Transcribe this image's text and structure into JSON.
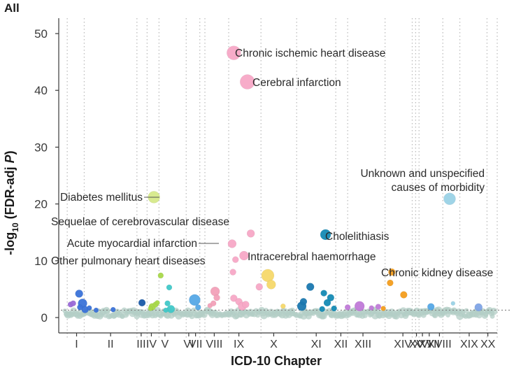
{
  "chart_data": {
    "type": "scatter",
    "subtype": "manhattan",
    "panel_title": "All",
    "xlabel": "ICD-10 Chapter",
    "ylabel_parts": [
      "-log",
      "10",
      " (FDR-adj ",
      "P",
      ")"
    ],
    "ylim": [
      0,
      53
    ],
    "yticks": [
      0,
      10,
      20,
      30,
      40,
      50
    ],
    "significance_threshold": 1.3,
    "chapters": [
      "I",
      "II",
      "III",
      "IV",
      "V",
      "VI",
      "VII",
      "VIII",
      "IX",
      "X",
      "XI",
      "XII",
      "XIII",
      "XIV",
      "XV",
      "XVI",
      "XVII",
      "XVIII",
      "XIX",
      "XX"
    ],
    "chapter_ranges": [
      [
        5,
        15
      ],
      [
        15,
        46
      ],
      [
        46,
        52
      ],
      [
        52,
        59
      ],
      [
        59,
        75
      ],
      [
        75,
        83
      ],
      [
        83,
        86
      ],
      [
        86,
        100
      ],
      [
        100,
        119
      ],
      [
        119,
        140
      ],
      [
        140,
        163
      ],
      [
        163,
        170
      ],
      [
        170,
        192
      ],
      [
        192,
        208
      ],
      [
        208,
        210
      ],
      [
        210,
        212
      ],
      [
        212,
        226
      ],
      [
        226,
        236
      ],
      [
        236,
        252
      ],
      [
        252,
        258
      ]
    ],
    "chapter_label_positions": [
      10.5,
      30.5,
      48.5,
      54.5,
      62.5,
      76.5,
      80.5,
      91.5,
      106,
      126.5,
      151.5,
      166,
      179,
      202.5,
      210.5,
      214,
      218,
      224,
      241.5,
      252.5
    ],
    "chapter_tick_labels": [
      {
        "label": "I",
        "x": 10.5
      },
      {
        "label": "II",
        "x": 30.5
      },
      {
        "label": "III",
        "x": 48.5
      },
      {
        "label": "IV",
        "x": 54.5
      },
      {
        "label": "V",
        "x": 62.5
      },
      {
        "label": "VI",
        "x": 76.5
      },
      {
        "label": "VII",
        "x": 80.5
      },
      {
        "label": "VIII",
        "x": 91.5
      },
      {
        "label": "IX",
        "x": 106
      },
      {
        "label": "X",
        "x": 126.5
      },
      {
        "label": "XI",
        "x": 151.5
      },
      {
        "label": "XII",
        "x": 166
      },
      {
        "label": "XIII",
        "x": 179
      },
      {
        "label": "XIV",
        "x": 202.5
      },
      {
        "label": "XV",
        "x": 210.5
      },
      {
        "label": "XVI",
        "x": 214
      },
      {
        "label": "XVII",
        "x": 218
      },
      {
        "label": "XVIII",
        "x": 224
      },
      {
        "label": "XIX",
        "x": 241.5
      },
      {
        "label": "XX",
        "x": 252.5
      }
    ],
    "chapter_boundaries": [
      5,
      15,
      46,
      52,
      59,
      75,
      83,
      86,
      100,
      119,
      140,
      163,
      170,
      192,
      208,
      210,
      212,
      226,
      236,
      252,
      258
    ],
    "chapter_colors": {
      "I": "#3a72d8",
      "II": "#3a72d8",
      "III": "#1a5aa8",
      "IV": "#a8d84a",
      "V": "#40c8c8",
      "VI": "#40c8c8",
      "VII": "#55a8e6",
      "VIII": "#f2a0b8",
      "IX": "#f7a8c6",
      "X": "#f5d86a",
      "XI": "#1a78b0",
      "XII": "#148ab4",
      "XIII": "#c07ad8",
      "XIV": "#f39d1c",
      "XV": "#55a8e6",
      "XVI": "#55a8e6",
      "XVII": "#55a8e6",
      "XVIII": "#9ad2e6",
      "XIX": "#7fa4e6",
      "XX": "#7fa4e6"
    },
    "nonsignificant_color": "#b3cdc6",
    "series": [
      {
        "name": "Chronic ischemic heart disease",
        "chapter": "IX",
        "x": 103,
        "y": 46.6,
        "size": 10,
        "color": "#f7a8c6",
        "label": "Chronic ischemic heart disease"
      },
      {
        "name": "Cerebral infarction",
        "chapter": "IX",
        "x": 111,
        "y": 41.5,
        "size": 10.5,
        "color": "#f7a8c6",
        "label": "Cerebral infarction"
      },
      {
        "name": "Unknown and unspecified causes of morbidity",
        "chapter": "XVIII",
        "x": 230,
        "y": 20.9,
        "size": 8.5,
        "color": "#9ad2e6",
        "label_lines": [
          "Unknown and unspecified",
          "causes of morbidity"
        ]
      },
      {
        "name": "Diabetes mellitus",
        "chapter": "IV",
        "x": 56,
        "y": 21.2,
        "size": 8.5,
        "color": "#d6e98a",
        "label": "Diabetes mellitus"
      },
      {
        "name": "Sequelae of cerebrovascular disease",
        "chapter": "IX",
        "x": 113,
        "y": 14.8,
        "size": 5.5,
        "color": "#f7a8c6",
        "label": "Sequelae of cerebrovascular disease"
      },
      {
        "name": "Cholelithiasis",
        "chapter": "XI",
        "x": 157,
        "y": 14.6,
        "size": 7.5,
        "color": "#148ab4",
        "label": "Cholelithiasis"
      },
      {
        "name": "Acute myocardial infarction",
        "chapter": "IX",
        "x": 102,
        "y": 13.0,
        "size": 6,
        "color": "#f7a8c6",
        "label": "Acute myocardial infarction"
      },
      {
        "name": "Intracerebral haemorrhage",
        "chapter": "IX",
        "x": 109,
        "y": 10.9,
        "size": 6.5,
        "color": "#f7a8c6",
        "label": "Intracerebral haemorrhage"
      },
      {
        "name": "Other pulmonary heart diseases",
        "chapter": "IX",
        "x": 104,
        "y": 10.2,
        "size": 4.5,
        "color": "#f7a8c6",
        "label": "Other pulmonary heart diseases"
      },
      {
        "name": "Chronic kidney disease",
        "chapter": "XIV",
        "x": 196,
        "y": 8.0,
        "size": 5,
        "color": "#f39d1c",
        "label": "Chronic kidney disease"
      }
    ],
    "points": [
      {
        "x": 7,
        "y": 2.3,
        "size": 4,
        "color": "#9a6ad8"
      },
      {
        "x": 8.5,
        "y": 2.5,
        "size": 4,
        "color": "#9a6ad8"
      },
      {
        "x": 12,
        "y": 4.2,
        "size": 5.5,
        "color": "#3a72d8"
      },
      {
        "x": 14,
        "y": 2.5,
        "size": 6.5,
        "color": "#3a72d8"
      },
      {
        "x": 15.5,
        "y": 1.4,
        "size": 5,
        "color": "#3a72d8"
      },
      {
        "x": 12.5,
        "y": 1.8,
        "size": 4,
        "color": "#3a72d8"
      },
      {
        "x": 18,
        "y": 1.7,
        "size": 3.5,
        "color": "#3a72d8"
      },
      {
        "x": 22,
        "y": 1.3,
        "size": 3.5,
        "color": "#3a72d8"
      },
      {
        "x": 32,
        "y": 1.4,
        "size": 3.5,
        "color": "#3a72d8"
      },
      {
        "x": 49,
        "y": 2.6,
        "size": 5,
        "color": "#1a5aa8"
      },
      {
        "x": 55,
        "y": 1.9,
        "size": 5,
        "color": "#a8d84a"
      },
      {
        "x": 57,
        "y": 2.3,
        "size": 4,
        "color": "#a8d84a"
      },
      {
        "x": 58,
        "y": 2.6,
        "size": 3.5,
        "color": "#a8d84a"
      },
      {
        "x": 54,
        "y": 1.6,
        "size": 3.5,
        "color": "#a8d84a"
      },
      {
        "x": 60,
        "y": 7.4,
        "size": 4,
        "color": "#a8d84a"
      },
      {
        "x": 65,
        "y": 5.3,
        "size": 4,
        "color": "#40c8c8"
      },
      {
        "x": 64,
        "y": 2.5,
        "size": 4,
        "color": "#40c8c8"
      },
      {
        "x": 66,
        "y": 1.5,
        "size": 5.5,
        "color": "#40c8c8"
      },
      {
        "x": 63,
        "y": 1.3,
        "size": 3.5,
        "color": "#40c8c8"
      },
      {
        "x": 80,
        "y": 3.1,
        "size": 8,
        "color": "#55a8e6"
      },
      {
        "x": 82,
        "y": 1.8,
        "size": 4,
        "color": "#55a8e6"
      },
      {
        "x": 89,
        "y": 2.1,
        "size": 3.5,
        "color": "#f2a0b8"
      },
      {
        "x": 92,
        "y": 4.6,
        "size": 6.5,
        "color": "#f2a0b8"
      },
      {
        "x": 93,
        "y": 3.5,
        "size": 4.5,
        "color": "#f2a0b8"
      },
      {
        "x": 91,
        "y": 2.5,
        "size": 4,
        "color": "#f2a0b8"
      },
      {
        "x": 102.5,
        "y": 8.0,
        "size": 4.5,
        "color": "#f7a8c6"
      },
      {
        "x": 103,
        "y": 3.4,
        "size": 5,
        "color": "#f7a8c6"
      },
      {
        "x": 106,
        "y": 2.8,
        "size": 5,
        "color": "#f7a8c6"
      },
      {
        "x": 108,
        "y": 2.0,
        "size": 6,
        "color": "#f7a8c6"
      },
      {
        "x": 110,
        "y": 2.3,
        "size": 5,
        "color": "#f7a8c6"
      },
      {
        "x": 118,
        "y": 5.4,
        "size": 5,
        "color": "#f7a8c6"
      },
      {
        "x": 123,
        "y": 7.4,
        "size": 9,
        "color": "#f5d86a"
      },
      {
        "x": 125,
        "y": 5.8,
        "size": 6.5,
        "color": "#f5d86a"
      },
      {
        "x": 132,
        "y": 2.0,
        "size": 3.5,
        "color": "#f5d86a"
      },
      {
        "x": 143,
        "y": 2.0,
        "size": 6.5,
        "color": "#1a78b0"
      },
      {
        "x": 144,
        "y": 2.8,
        "size": 5,
        "color": "#1a78b0"
      },
      {
        "x": 148,
        "y": 5.4,
        "size": 5.5,
        "color": "#1a78b0"
      },
      {
        "x": 156,
        "y": 4.3,
        "size": 4.5,
        "color": "#148ab4"
      },
      {
        "x": 158,
        "y": 2.6,
        "size": 5,
        "color": "#148ab4"
      },
      {
        "x": 160,
        "y": 3.5,
        "size": 5,
        "color": "#148ab4"
      },
      {
        "x": 155,
        "y": 1.5,
        "size": 4,
        "color": "#148ab4"
      },
      {
        "x": 162,
        "y": 1.6,
        "size": 4,
        "color": "#148ab4"
      },
      {
        "x": 170,
        "y": 1.8,
        "size": 4,
        "color": "#c07ad8"
      },
      {
        "x": 177,
        "y": 2.0,
        "size": 7,
        "color": "#c07ad8"
      },
      {
        "x": 184,
        "y": 1.7,
        "size": 3.5,
        "color": "#c07ad8"
      },
      {
        "x": 188,
        "y": 1.9,
        "size": 4,
        "color": "#c07ad8"
      },
      {
        "x": 191,
        "y": 1.6,
        "size": 3.5,
        "color": "#f39d1c"
      },
      {
        "x": 195,
        "y": 6.1,
        "size": 4.5,
        "color": "#f39d1c"
      },
      {
        "x": 203,
        "y": 4.0,
        "size": 5,
        "color": "#f39d1c"
      },
      {
        "x": 219,
        "y": 1.9,
        "size": 5,
        "color": "#55a8e6"
      },
      {
        "x": 232,
        "y": 2.5,
        "size": 3,
        "color": "#9ad2e6"
      },
      {
        "x": 247,
        "y": 1.8,
        "size": 5.5,
        "color": "#7fa4e6"
      }
    ],
    "grid": "vertical dotted lines at chapter boundaries",
    "legend": "none"
  }
}
